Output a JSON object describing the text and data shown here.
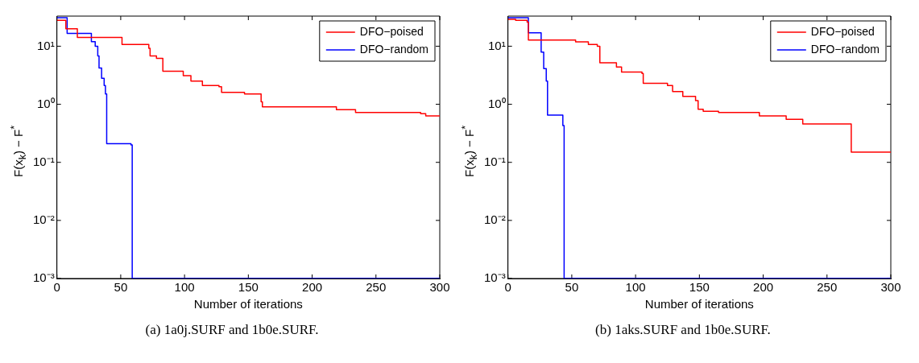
{
  "chart_data": [
    {
      "type": "step",
      "xlabel": "Number of iterations",
      "ylabel": "F(x$_{k}$) − F$^{*}$",
      "log": "y",
      "legend": "top right",
      "xlim": [
        0,
        300
      ],
      "xticks": [
        0,
        50,
        100,
        150,
        200,
        250,
        300
      ],
      "ylim": [
        0.001,
        33
      ],
      "yticks": [
        {
          "value": 0.001,
          "label": "10⁻³"
        },
        {
          "value": 0.01,
          "label": "10⁻²"
        },
        {
          "value": 0.1,
          "label": "10⁻¹"
        },
        {
          "value": 1,
          "label": "10⁰"
        },
        {
          "value": 10,
          "label": "10¹"
        }
      ],
      "annotations": [
        "(a) 1a0j.SURF and 1b0e.SURF."
      ],
      "series": [
        {
          "name": "DFO−poised",
          "color": "#ff0000",
          "x": [
            0,
            7,
            16,
            51,
            72,
            73,
            78,
            83,
            99,
            105,
            114,
            127,
            129,
            147,
            160,
            161,
            219,
            234,
            285,
            289,
            300
          ],
          "values": [
            28,
            20,
            14.2,
            10.7,
            9.2,
            6.8,
            6.2,
            3.7,
            3.1,
            2.5,
            2.1,
            2.0,
            1.6,
            1.5,
            1.1,
            0.9,
            0.81,
            0.72,
            0.69,
            0.63,
            0.63
          ]
        },
        {
          "name": "DFO−random",
          "color": "#0000ff",
          "x": [
            0,
            8,
            27,
            30,
            32,
            33,
            35,
            37,
            38,
            39,
            58,
            59,
            300
          ],
          "values": [
            31,
            16.6,
            12,
            10,
            6.8,
            4.2,
            2.8,
            2.1,
            1.5,
            0.21,
            0.2,
            0.001,
            0.001
          ]
        }
      ]
    },
    {
      "type": "step",
      "xlabel": "Number of iterations",
      "ylabel": "F(x$_{k}$) − F$^{*}$",
      "log": "y",
      "legend": "top right",
      "xlim": [
        0,
        300
      ],
      "xticks": [
        0,
        50,
        100,
        150,
        200,
        250,
        300
      ],
      "ylim": [
        0.001,
        33
      ],
      "yticks": [
        {
          "value": 0.001,
          "label": "10⁻³"
        },
        {
          "value": 0.01,
          "label": "10⁻²"
        },
        {
          "value": 0.1,
          "label": "10⁻¹"
        },
        {
          "value": 1,
          "label": "10⁰"
        },
        {
          "value": 10,
          "label": "10¹"
        }
      ],
      "annotations": [
        "(b) 1aks.SURF and 1b0e.SURF."
      ],
      "series": [
        {
          "name": "DFO−poised",
          "color": "#ff0000",
          "x": [
            0,
            6,
            15,
            16,
            53,
            63,
            70,
            72,
            85,
            89,
            105,
            106,
            125,
            129,
            137,
            147,
            149,
            153,
            165,
            197,
            218,
            231,
            269,
            300
          ],
          "values": [
            29,
            28,
            26,
            12.8,
            11.9,
            10.7,
            10,
            5.2,
            4.4,
            3.6,
            3.4,
            2.3,
            2.1,
            1.66,
            1.37,
            1.16,
            0.82,
            0.76,
            0.72,
            0.63,
            0.55,
            0.46,
            0.15,
            0.15
          ]
        },
        {
          "name": "DFO−random",
          "color": "#0000ff",
          "x": [
            0,
            16,
            24,
            26,
            28,
            30,
            31,
            42,
            43,
            44,
            300
          ],
          "values": [
            31,
            17,
            17,
            7.9,
            4.1,
            2.5,
            0.65,
            0.65,
            0.43,
            0.001,
            0.001
          ]
        }
      ]
    }
  ]
}
